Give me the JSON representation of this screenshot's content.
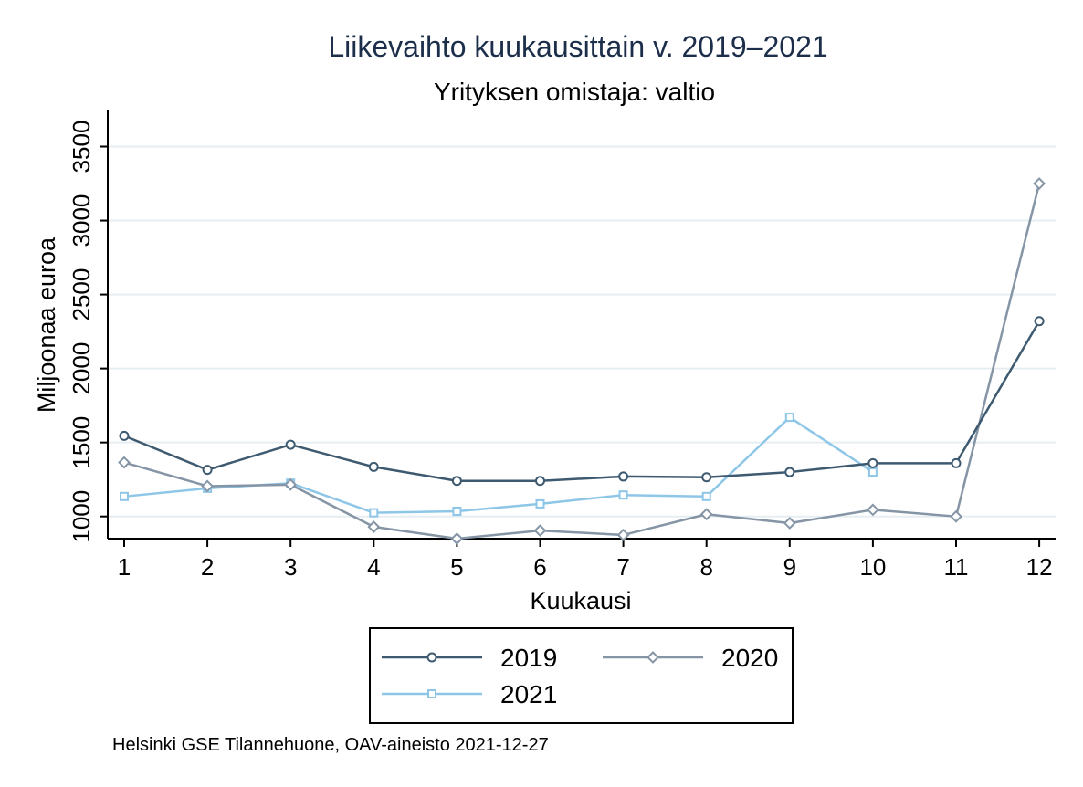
{
  "chart_data": {
    "type": "line",
    "title": "Liikevaihto kuukausittain v. 2019–2021",
    "subtitle": "Yrityksen omistaja: valtio",
    "xlabel": "Kuukausi",
    "ylabel": "Miljoonaa euroa",
    "x": [
      1,
      2,
      3,
      4,
      5,
      6,
      7,
      8,
      9,
      10,
      11,
      12
    ],
    "xticks": [
      "1",
      "2",
      "3",
      "4",
      "5",
      "6",
      "7",
      "8",
      "9",
      "10",
      "11",
      "12"
    ],
    "yticks": [
      "1000",
      "1500",
      "2000",
      "2500",
      "3000",
      "3500"
    ],
    "ylim": [
      850,
      3750
    ],
    "grid": true,
    "legend_position": "bottom",
    "series": [
      {
        "name": "2019",
        "color": "#3e5a70",
        "marker": "circle",
        "values": [
          1545,
          1315,
          1485,
          1335,
          1240,
          1240,
          1270,
          1265,
          1300,
          1360,
          1360,
          2320
        ]
      },
      {
        "name": "2020",
        "color": "#8595a6",
        "marker": "diamond",
        "values": [
          1365,
          1205,
          1215,
          930,
          850,
          905,
          875,
          1015,
          955,
          1045,
          1000,
          3250
        ]
      },
      {
        "name": "2021",
        "color": "#8ec6e8",
        "marker": "square",
        "values": [
          1135,
          1190,
          1225,
          1025,
          1035,
          1085,
          1145,
          1135,
          1670,
          1300,
          null,
          null
        ]
      }
    ]
  },
  "source_note": "Helsinki GSE Tilannehuone, OAV-aineisto 2021-12-27"
}
